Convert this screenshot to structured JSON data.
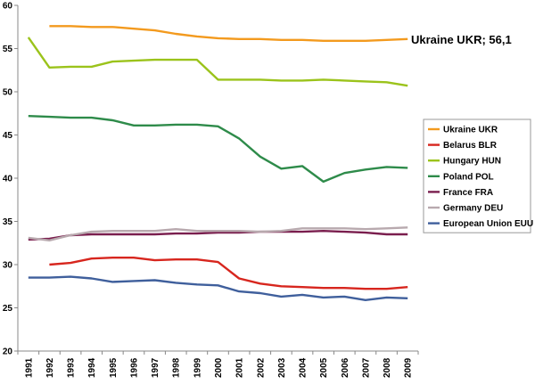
{
  "chart_data": {
    "type": "line",
    "title": "",
    "xlabel": "",
    "ylabel": "",
    "ylim": [
      20,
      60
    ],
    "yticks": [
      "20",
      "25",
      "30",
      "35",
      "40",
      "45",
      "50",
      "55",
      "60"
    ],
    "categories": [
      "1991",
      "1992",
      "1993",
      "1994",
      "1995",
      "1996",
      "1997",
      "1998",
      "1999",
      "2000",
      "2001",
      "2002",
      "2003",
      "2004",
      "2005",
      "2006",
      "2007",
      "2008",
      "2009"
    ],
    "grid": false,
    "legend_position": "right",
    "annotation": "Ukraine UKR; 56,1",
    "series": [
      {
        "name": "Ukraine UKR",
        "color": "#F39A1E",
        "values": [
          null,
          57.6,
          57.6,
          57.5,
          57.5,
          57.3,
          57.1,
          56.7,
          56.4,
          56.2,
          56.1,
          56.1,
          56.0,
          56.0,
          55.9,
          55.9,
          55.9,
          56.0,
          56.1
        ]
      },
      {
        "name": "Belarus BLR",
        "color": "#D7261E",
        "values": [
          null,
          30.0,
          30.2,
          30.7,
          30.8,
          30.8,
          30.5,
          30.6,
          30.6,
          30.3,
          28.4,
          27.8,
          27.5,
          27.4,
          27.3,
          27.3,
          27.2,
          27.2,
          27.4
        ]
      },
      {
        "name": "Hungary HUN",
        "color": "#9BC31B",
        "values": [
          56.3,
          52.8,
          52.9,
          52.9,
          53.5,
          53.6,
          53.7,
          53.7,
          53.7,
          51.4,
          51.4,
          51.4,
          51.3,
          51.3,
          51.4,
          51.3,
          51.2,
          51.1,
          50.7
        ]
      },
      {
        "name": "Poland POL",
        "color": "#2E8B4A",
        "values": [
          47.2,
          47.1,
          47.0,
          47.0,
          46.7,
          46.1,
          46.1,
          46.2,
          46.2,
          46.0,
          44.6,
          42.5,
          41.1,
          41.4,
          39.6,
          40.6,
          41.0,
          41.3,
          41.2
        ]
      },
      {
        "name": "France FRA",
        "color": "#7A1E4E",
        "values": [
          32.9,
          33.0,
          33.4,
          33.5,
          33.5,
          33.5,
          33.5,
          33.6,
          33.6,
          33.7,
          33.7,
          33.8,
          33.8,
          33.8,
          33.9,
          33.8,
          33.7,
          33.5,
          33.5
        ]
      },
      {
        "name": "Germany DEU",
        "color": "#B8A9AE",
        "values": [
          33.1,
          32.8,
          33.4,
          33.8,
          33.9,
          33.9,
          33.9,
          34.1,
          33.9,
          33.9,
          33.9,
          33.8,
          33.9,
          34.2,
          34.2,
          34.2,
          34.1,
          34.2,
          34.3
        ]
      },
      {
        "name": "European Union EUU",
        "color": "#3F5F9C",
        "values": [
          28.5,
          28.5,
          28.6,
          28.4,
          28.0,
          28.1,
          28.2,
          27.9,
          27.7,
          27.6,
          26.9,
          26.7,
          26.3,
          26.5,
          26.2,
          26.3,
          25.9,
          26.2,
          26.1
        ]
      }
    ]
  }
}
